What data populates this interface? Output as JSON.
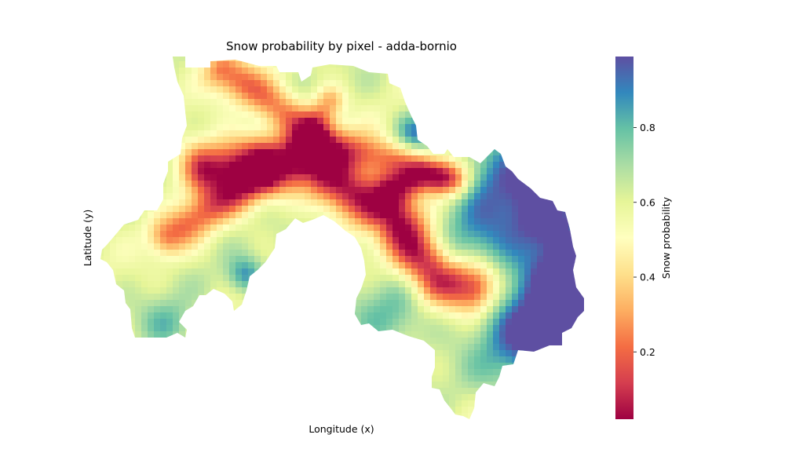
{
  "chart_data": {
    "type": "heatmap",
    "title": "Snow probability by pixel - adda-bornio",
    "xlabel": "Longitude (x)",
    "ylabel": "Latitude (y)",
    "colorbar": {
      "label": "Snow probability",
      "colormap": "Spectral",
      "range": [
        0.02,
        0.99
      ],
      "ticks": [
        0.2,
        0.4,
        0.6,
        0.8
      ],
      "tick_labels": [
        "0.2",
        "0.4",
        "0.6",
        "0.8"
      ],
      "colors": [
        "#9e0142",
        "#d53e4f",
        "#f46d43",
        "#fdae61",
        "#fee08b",
        "#ffffbf",
        "#e6f598",
        "#abdda4",
        "#66c2a5",
        "#3288bd",
        "#5e4fa2"
      ]
    },
    "grid": false,
    "axes_visible": false
  }
}
